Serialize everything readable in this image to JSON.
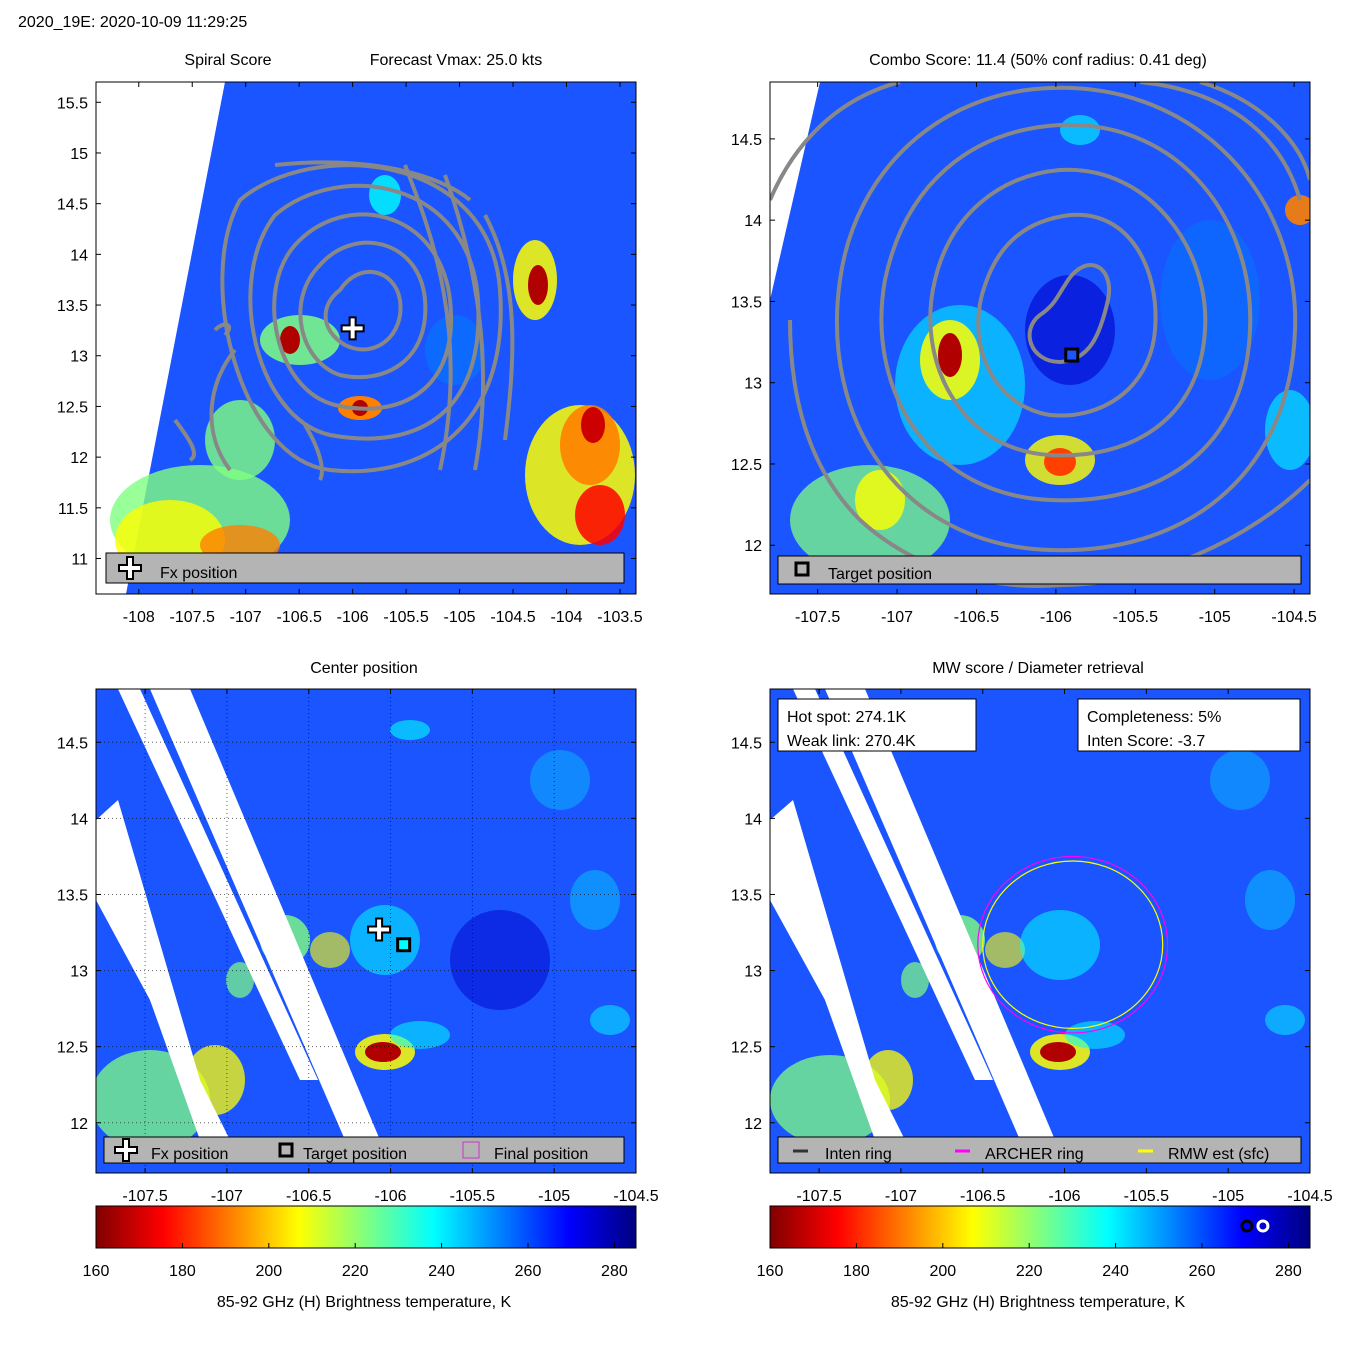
{
  "header": {
    "title": "2020_19E: 2020-10-09 11:29:25"
  },
  "colors": {
    "contour": "#888888",
    "legend_bg": "#b4b4b4",
    "archer_ring": "#ff00ff",
    "rmw_ring": "#ffff00",
    "inten_ring": "#333333",
    "final_marker": "#cc33cc",
    "colormap": [
      "#800000",
      "#ff0000",
      "#ff8000",
      "#ffff00",
      "#80ff80",
      "#00ffff",
      "#0080ff",
      "#0000ff",
      "#000080"
    ]
  },
  "panels": {
    "spiral": {
      "title_left": "Spiral Score",
      "title_right": "Forecast Vmax: 25.0 kts",
      "legend": {
        "fx_label": "Fx position"
      }
    },
    "combo": {
      "title": "Combo Score: 11.4  (50% conf radius: 0.41 deg)",
      "legend": {
        "target_label": "Target position"
      }
    },
    "center": {
      "title": "Center position",
      "legend": {
        "fx_label": "Fx position",
        "target_label": "Target position",
        "final_label": "Final position"
      }
    },
    "mw": {
      "title": "MW score / Diameter retrieval",
      "hot_spot": "Hot spot: 274.1K",
      "weak_link": "Weak link: 270.4K",
      "completeness": "Completeness: 5%",
      "inten_score": "Inten Score: -3.7",
      "legend": {
        "inten_label": "Inten ring",
        "archer_label": "ARCHER ring",
        "rmw_label": "RMW est (sfc)"
      }
    }
  },
  "colorbars": [
    {
      "label": "85-92 GHz (H) Brightness temperature, K"
    },
    {
      "label": "85-92 GHz (H) Brightness temperature, K"
    }
  ],
  "chart_data": [
    {
      "type": "heatmap",
      "title": "Spiral Score",
      "subtitle": "Forecast Vmax: 25.0 kts",
      "xlim": [
        -108.4,
        -103.35
      ],
      "ylim": [
        10.65,
        15.7
      ],
      "xticks": [
        -108,
        -107.5,
        -107,
        -106.5,
        -106,
        -105.5,
        -105,
        -104.5,
        -104,
        -103.5
      ],
      "yticks": [
        11,
        11.5,
        12,
        12.5,
        13,
        13.5,
        14,
        14.5,
        15,
        15.5
      ],
      "markers": [
        {
          "name": "Fx position",
          "lon": -106.0,
          "lat": 13.27
        }
      ],
      "contours": true
    },
    {
      "type": "heatmap",
      "title": "Combo Score: 11.4  (50% conf radius: 0.41 deg)",
      "xlim": [
        -107.8,
        -104.4
      ],
      "ylim": [
        11.7,
        14.85
      ],
      "xticks": [
        -107.5,
        -107,
        -106.5,
        -106,
        -105.5,
        -105,
        -104.5
      ],
      "yticks": [
        12,
        12.5,
        13,
        13.5,
        14,
        14.5
      ],
      "markers": [
        {
          "name": "Target position",
          "lon": -105.9,
          "lat": 13.17
        }
      ],
      "contours": true
    },
    {
      "type": "heatmap",
      "title": "Center position",
      "xlim": [
        -107.8,
        -104.5
      ],
      "ylim": [
        11.67,
        14.85
      ],
      "xticks": [
        -107.5,
        -107,
        -106.5,
        -106,
        -105.5,
        -105,
        -104.5
      ],
      "yticks": [
        12,
        12.5,
        13,
        13.5,
        14,
        14.5
      ],
      "grid": true,
      "markers": [
        {
          "name": "Fx position",
          "lon": -106.07,
          "lat": 13.27
        },
        {
          "name": "Target position",
          "lon": -105.92,
          "lat": 13.17
        }
      ]
    },
    {
      "type": "heatmap",
      "title": "MW score / Diameter retrieval",
      "xlim": [
        -107.8,
        -104.5
      ],
      "ylim": [
        11.67,
        14.85
      ],
      "xticks": [
        -107.5,
        -107,
        -106.5,
        -106,
        -105.5,
        -105,
        -104.5
      ],
      "yticks": [
        12,
        12.5,
        13,
        13.5,
        14,
        14.5
      ],
      "rings": [
        {
          "name": "ARCHER ring",
          "lon": -105.95,
          "lat": 13.17,
          "radius_deg": 0.58
        },
        {
          "name": "RMW est (sfc)",
          "lon": -105.95,
          "lat": 13.17,
          "radius_deg": 0.55
        }
      ]
    },
    {
      "type": "colorbar",
      "xlabel": "85-92 GHz (H) Brightness temperature, K",
      "range": [
        160,
        285
      ],
      "ticks": [
        160,
        180,
        200,
        220,
        240,
        260,
        280
      ]
    },
    {
      "type": "colorbar",
      "xlabel": "85-92 GHz (H) Brightness temperature, K",
      "range": [
        160,
        285
      ],
      "ticks": [
        160,
        180,
        200,
        220,
        240,
        260,
        280
      ],
      "markers": [
        {
          "name": "Hot spot",
          "value": 274.1
        },
        {
          "name": "Weak link",
          "value": 270.4
        }
      ]
    }
  ]
}
